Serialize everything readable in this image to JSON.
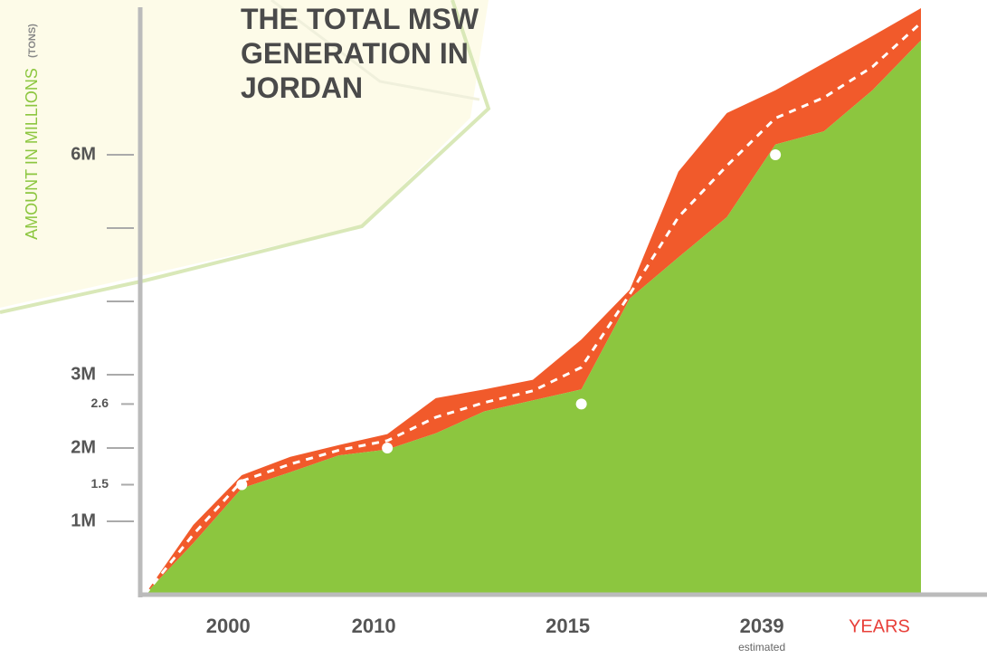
{
  "chart_data": {
    "type": "area",
    "title": "THE TOTAL MSW GENERATION IN JORDAN",
    "y_label": "AMOUNT IN MILLIONS",
    "y_unit": "(TONS)",
    "x_label": "YEARS",
    "x_note": "estimated",
    "categories": [
      null,
      null,
      "2000",
      null,
      null,
      "2010",
      null,
      null,
      null,
      "2015",
      null,
      null,
      null,
      "2039",
      null,
      null,
      null
    ],
    "series": [
      {
        "color": "#8cc63f",
        "values": [
          0,
          0.7,
          1.45,
          1.67,
          1.9,
          1.98,
          2.2,
          2.5,
          2.65,
          2.8,
          4.04,
          4.6,
          5.15,
          6.14,
          6.32,
          6.88,
          7.56
        ]
      },
      {
        "color": "#f15a2b",
        "values": [
          0,
          0.25,
          0.18,
          0.21,
          0.14,
          0.21,
          0.48,
          0.3,
          0.28,
          0.68,
          0.12,
          1.17,
          1.42,
          0.74,
          0.93,
          0.74,
          0.44
        ]
      },
      {
        "color": "#ffffff",
        "values": [
          0,
          0.82,
          1.55,
          1.78,
          1.97,
          2.1,
          2.42,
          2.62,
          2.78,
          3.1,
          4.1,
          5.15,
          5.85,
          6.5,
          6.78,
          7.2,
          7.8
        ]
      },
      {
        "color": "#ffffff",
        "values": [
          null,
          null,
          1.5,
          null,
          null,
          2.0,
          null,
          null,
          null,
          2.6,
          null,
          null,
          null,
          6.0,
          null,
          null,
          null
        ]
      }
    ],
    "ylim": [
      0,
      8
    ],
    "yticks": [
      {
        "value": 1,
        "label": "1M"
      },
      1.5,
      {
        "value": 2,
        "label": "2M"
      },
      2.6,
      {
        "value": 3,
        "label": "3M"
      },
      {
        "value": 6,
        "label": "6M"
      }
    ],
    "minor_yticks": [
      4,
      5
    ]
  }
}
